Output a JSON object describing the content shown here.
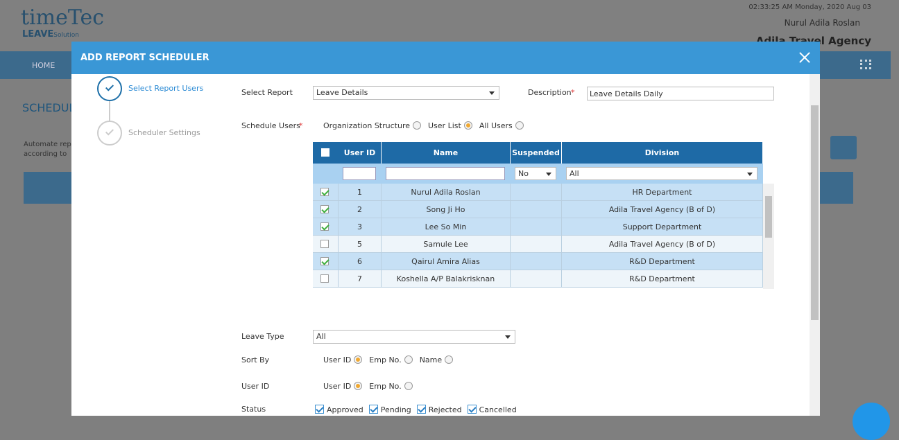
{
  "header": {
    "logo_main": "timeTec",
    "logo_sub": "LEAVE",
    "logo_suffix": "Solution",
    "datetime": "02:33:25 AM Monday, 2020 Aug 03",
    "user": "Nurul Adila Roslan",
    "company": "Adila Travel Agency"
  },
  "nav": {
    "home": "HOME"
  },
  "background": {
    "title": "SCHEDUL",
    "lines": [
      "Automate rep",
      "according to"
    ]
  },
  "modal": {
    "title": "ADD REPORT SCHEDULER",
    "steps": [
      {
        "label": "Select Report Users",
        "active": true
      },
      {
        "label": "Scheduler Settings",
        "active": false
      }
    ],
    "select_report": {
      "label": "Select Report",
      "value": "Leave Details"
    },
    "description": {
      "label": "Description",
      "required": "*",
      "value": "Leave Details Daily"
    },
    "schedule_users": {
      "label": "Schedule Users",
      "required": "*",
      "options": [
        {
          "label": "Organization Structure",
          "selected": false
        },
        {
          "label": "User List",
          "selected": true
        },
        {
          "label": "All Users",
          "selected": false
        }
      ]
    },
    "table": {
      "columns": [
        "User ID",
        "Name",
        "Suspended",
        "Division"
      ],
      "filters": {
        "suspended": "No",
        "division": "All"
      },
      "rows": [
        {
          "checked": true,
          "user_id": "1",
          "name": "Nurul Adila Roslan",
          "division": "HR Department"
        },
        {
          "checked": true,
          "user_id": "2",
          "name": "Song Ji Ho",
          "division": "Adila Travel Agency (B of D)"
        },
        {
          "checked": true,
          "user_id": "3",
          "name": "Lee So Min",
          "division": "Support Department"
        },
        {
          "checked": false,
          "user_id": "5",
          "name": "Samule Lee",
          "division": "Adila Travel Agency (B of D)"
        },
        {
          "checked": true,
          "user_id": "6",
          "name": "Qairul Amira Alias",
          "division": "R&D Department"
        },
        {
          "checked": false,
          "user_id": "7",
          "name": "Koshella A/P Balakrisknan",
          "division": "R&D Department"
        }
      ]
    },
    "leave_type": {
      "label": "Leave Type",
      "value": "All"
    },
    "sort_by": {
      "label": "Sort By",
      "options": [
        {
          "label": "User ID",
          "selected": true
        },
        {
          "label": "Emp No.",
          "selected": false
        },
        {
          "label": "Name",
          "selected": false
        }
      ]
    },
    "user_id": {
      "label": "User ID",
      "options": [
        {
          "label": "User ID",
          "selected": true
        },
        {
          "label": "Emp No.",
          "selected": false
        }
      ]
    },
    "status": {
      "label": "Status",
      "options": [
        {
          "label": "Approved",
          "checked": true
        },
        {
          "label": "Pending",
          "checked": true
        },
        {
          "label": "Rejected",
          "checked": true
        },
        {
          "label": "Cancelled",
          "checked": true
        }
      ]
    }
  }
}
